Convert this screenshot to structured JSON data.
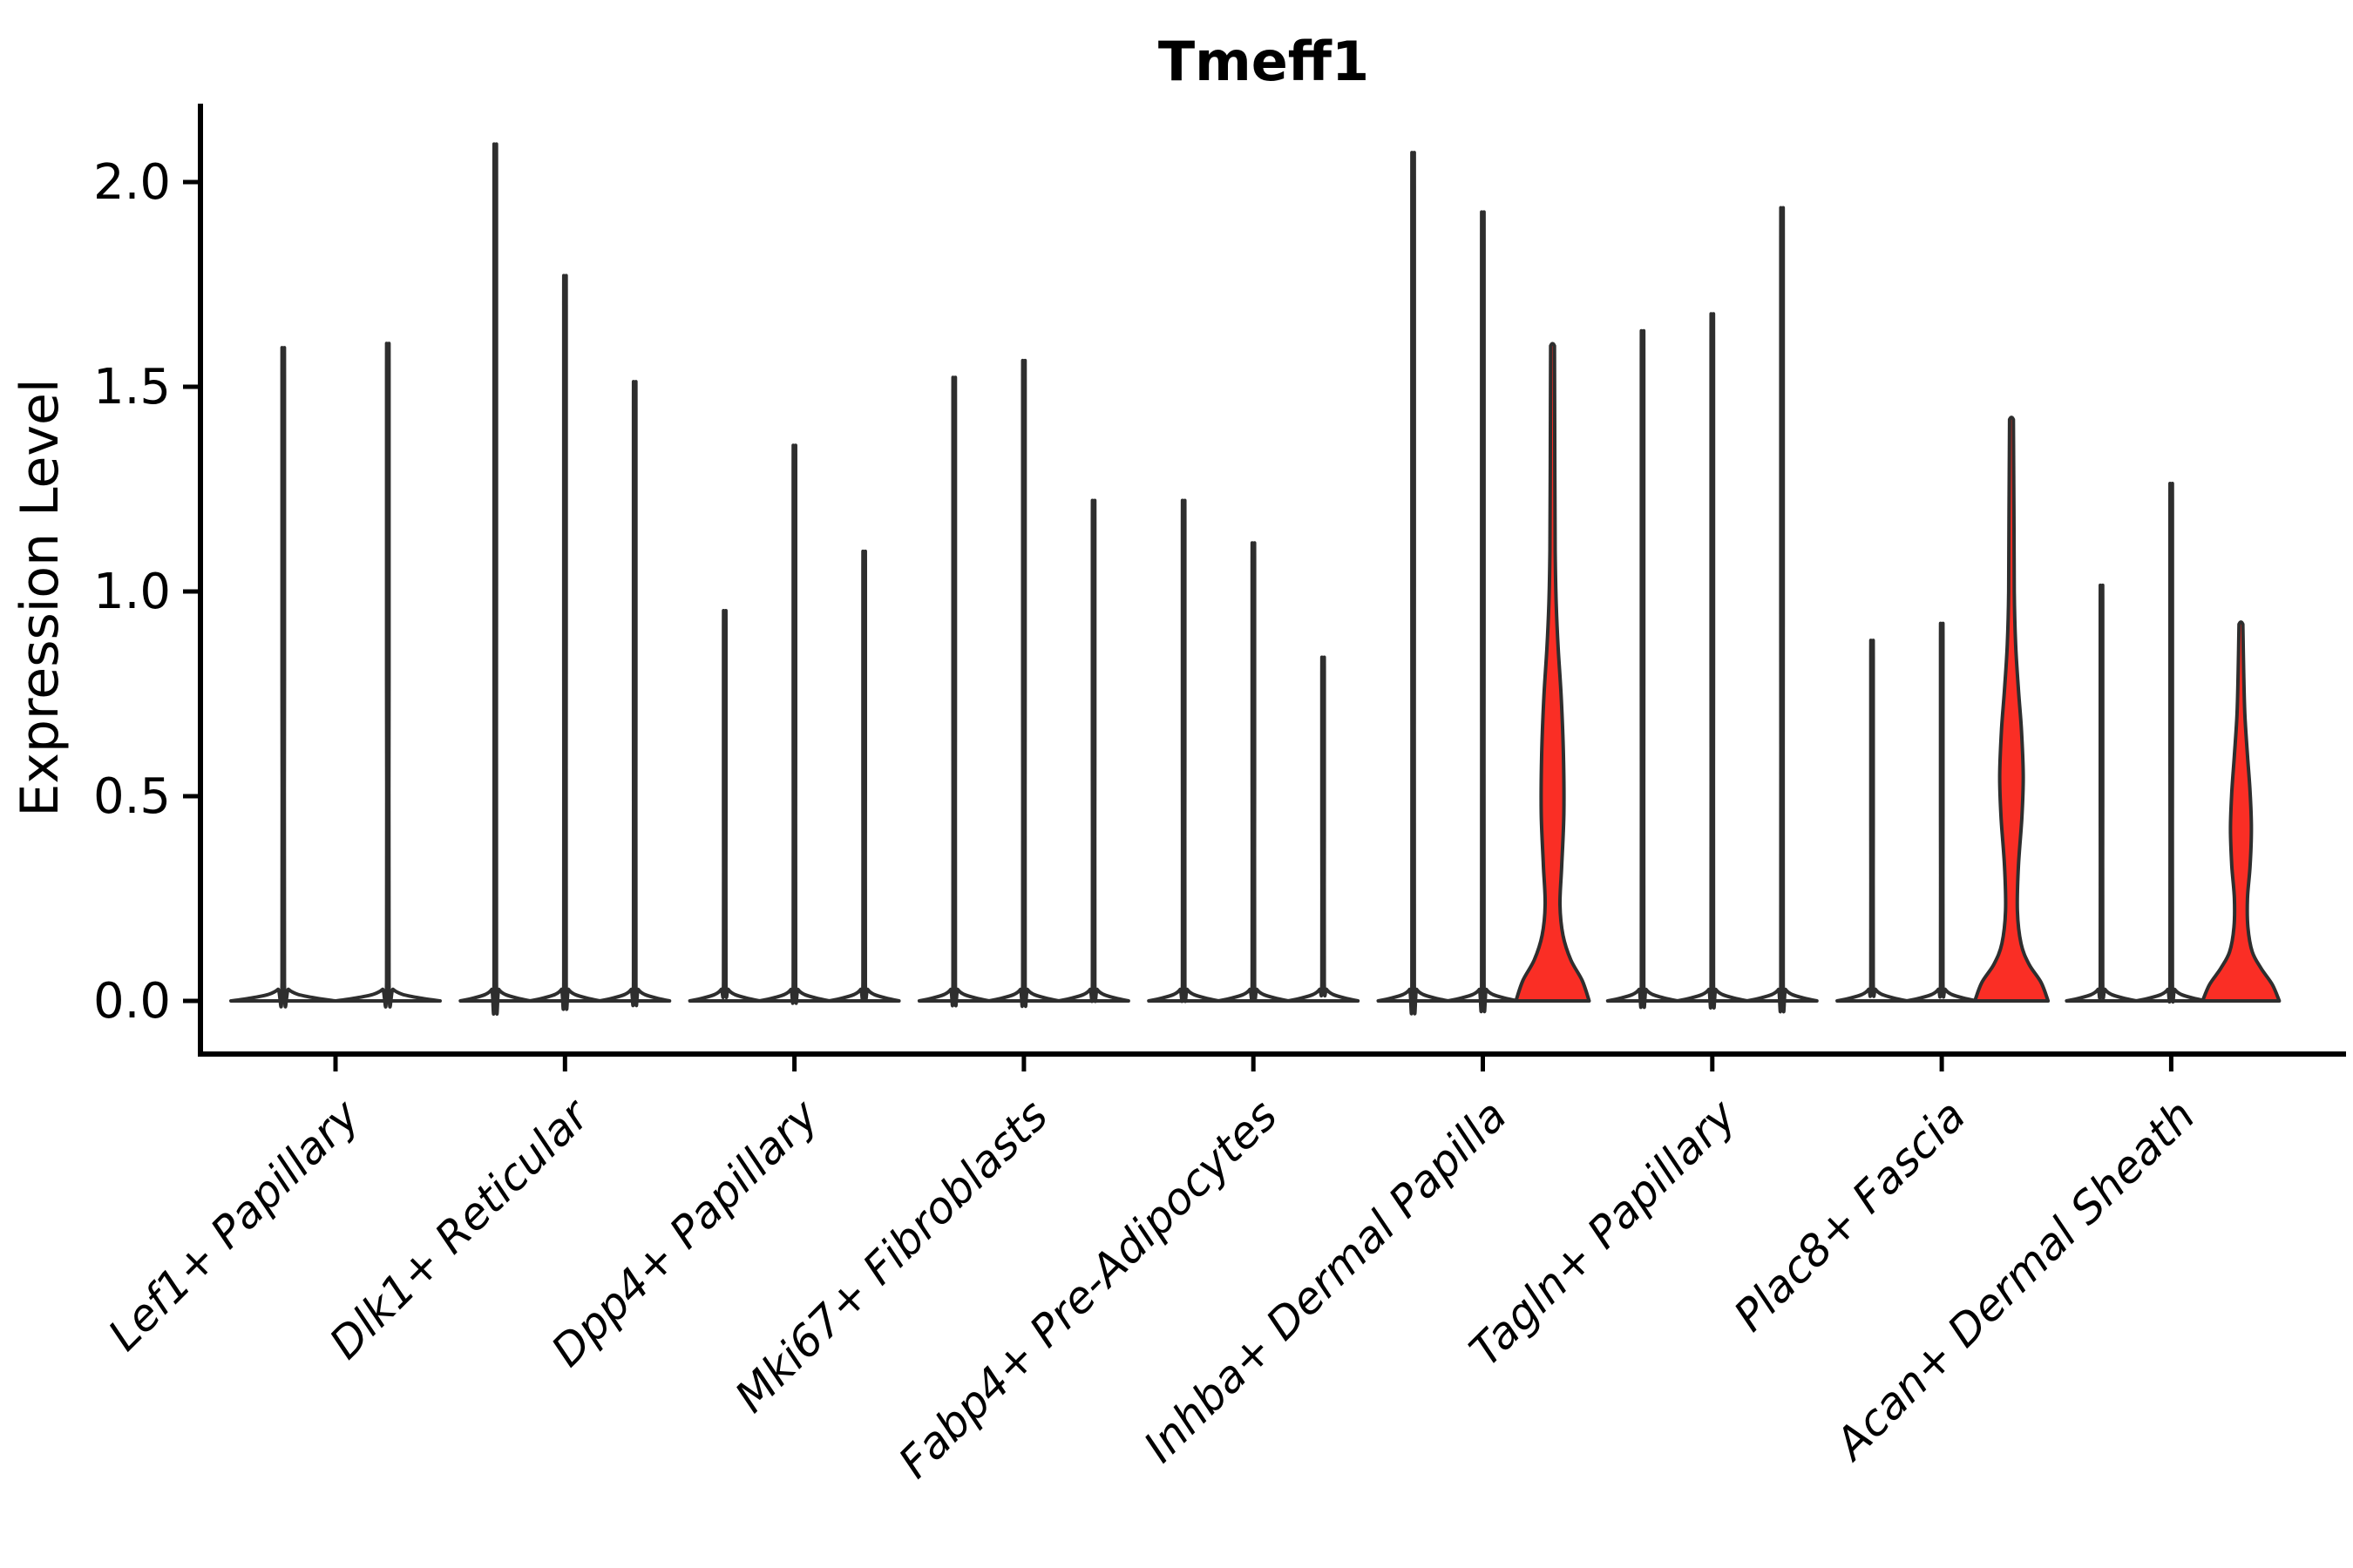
{
  "title": "Tmeff1",
  "y_axis": {
    "label": "Expression Level",
    "tick_labels": [
      "0.0",
      "0.5",
      "1.0",
      "1.5",
      "2.0"
    ],
    "tick_values": [
      0.0,
      0.5,
      1.0,
      1.5,
      2.0
    ]
  },
  "x_axis": {
    "label": "",
    "tick_labels": [
      "Lef1+ Papillary",
      "Dlk1+ Reticular",
      "Dpp4+ Papillary",
      "Mki67+ Fibroblasts",
      "Fabp4+ Pre-Adipocytes",
      "Inhba+ Dermal Papilla",
      "Tagln+ Papillary",
      "Plac8+ Fascia",
      "Acan+ Dermal Sheath"
    ]
  },
  "colors": {
    "outline": "#2e2e2e",
    "axis": "#000000",
    "red_fill": "#fa2e25",
    "background": "#ffffff"
  },
  "chart_data": {
    "type": "violin",
    "title": "Tmeff1",
    "xlabel": "",
    "ylabel": "Expression Level",
    "ylim": [
      0,
      2.2
    ],
    "y_ticks": [
      0.0,
      0.5,
      1.0,
      1.5,
      2.0
    ],
    "y_tick_labels": [
      "0.0",
      "0.5",
      "1.0",
      "1.5",
      "2.0"
    ],
    "legend": "none",
    "grid": false,
    "note": "Seurat-style stacked violin plot of Tmeff1 expression; each cluster shows one narrow spike-violin per sample; three violins are red-filled with visible density bulges.",
    "groups": [
      {
        "category": "Lef1+ Papillary",
        "violins": [
          {
            "max": 1.56,
            "shape": "spike",
            "fill": "white"
          },
          {
            "max": 1.57,
            "shape": "spike",
            "fill": "white"
          }
        ]
      },
      {
        "category": "Dlk1+ Reticular",
        "violins": [
          {
            "max": 2.04,
            "shape": "spike",
            "fill": "white"
          },
          {
            "max": 1.73,
            "shape": "spike",
            "fill": "white"
          },
          {
            "max": 1.48,
            "shape": "spike",
            "fill": "white"
          }
        ]
      },
      {
        "category": "Dpp4+ Papillary",
        "violins": [
          {
            "max": 0.94,
            "shape": "spike",
            "fill": "white"
          },
          {
            "max": 1.33,
            "shape": "spike",
            "fill": "white"
          },
          {
            "max": 1.08,
            "shape": "spike",
            "fill": "white"
          }
        ]
      },
      {
        "category": "Mki67+ Fibroblasts",
        "violins": [
          {
            "max": 1.49,
            "shape": "spike",
            "fill": "white"
          },
          {
            "max": 1.53,
            "shape": "spike",
            "fill": "white"
          },
          {
            "max": 1.2,
            "shape": "spike",
            "fill": "white"
          }
        ]
      },
      {
        "category": "Fabp4+ Pre-Adipocytes",
        "violins": [
          {
            "max": 1.2,
            "shape": "spike",
            "fill": "white"
          },
          {
            "max": 1.1,
            "shape": "spike",
            "fill": "white"
          },
          {
            "max": 0.83,
            "shape": "spike",
            "fill": "white"
          }
        ]
      },
      {
        "category": "Inhba+ Dermal Papilla",
        "violins": [
          {
            "max": 2.02,
            "shape": "spike",
            "fill": "white"
          },
          {
            "max": 1.88,
            "shape": "spike",
            "fill": "white"
          },
          {
            "max": 1.6,
            "shape": "bulged",
            "fill": "red",
            "profile": [
              [
                0,
                42
              ],
              [
                0.05,
                34
              ],
              [
                0.1,
                21
              ],
              [
                0.16,
                12
              ],
              [
                0.235,
                8.5
              ],
              [
                0.33,
                10.5
              ],
              [
                0.46,
                13
              ],
              [
                0.6,
                12.5
              ],
              [
                0.74,
                10
              ],
              [
                0.86,
                6.5
              ],
              [
                0.97,
                4.2
              ],
              [
                1.1,
                3.0
              ],
              [
                1.3,
                2.6
              ],
              [
                1.6,
                2.2
              ]
            ]
          }
        ]
      },
      {
        "category": "Tagln+ Papillary",
        "violins": [
          {
            "max": 1.6,
            "shape": "spike",
            "fill": "white"
          },
          {
            "max": 1.64,
            "shape": "spike",
            "fill": "white"
          },
          {
            "max": 1.89,
            "shape": "spike",
            "fill": "white"
          }
        ]
      },
      {
        "category": "Plac8+ Fascia",
        "violins": [
          {
            "max": 0.87,
            "shape": "spike",
            "fill": "white"
          },
          {
            "max": 0.91,
            "shape": "spike",
            "fill": "white"
          },
          {
            "max": 1.42,
            "shape": "bulged",
            "fill": "red",
            "profile": [
              [
                0,
                42
              ],
              [
                0.045,
                34
              ],
              [
                0.09,
                20
              ],
              [
                0.14,
                11
              ],
              [
                0.22,
                6.8
              ],
              [
                0.33,
                8
              ],
              [
                0.45,
                12
              ],
              [
                0.55,
                13.5
              ],
              [
                0.66,
                11.5
              ],
              [
                0.76,
                8
              ],
              [
                0.87,
                4.8
              ],
              [
                1.0,
                3.2
              ],
              [
                1.2,
                2.8
              ],
              [
                1.42,
                2.2
              ]
            ]
          }
        ]
      },
      {
        "category": "Acan+ Dermal Sheath",
        "violins": [
          {
            "max": 1.0,
            "shape": "spike",
            "fill": "white"
          },
          {
            "max": 1.24,
            "shape": "spike",
            "fill": "white"
          },
          {
            "max": 0.92,
            "shape": "bulged",
            "fill": "red",
            "profile": [
              [
                0,
                44
              ],
              [
                0.04,
                36
              ],
              [
                0.08,
                23
              ],
              [
                0.12,
                13
              ],
              [
                0.18,
                8
              ],
              [
                0.25,
                7.5
              ],
              [
                0.33,
                10.5
              ],
              [
                0.42,
                12
              ],
              [
                0.51,
                10.5
              ],
              [
                0.6,
                7.5
              ],
              [
                0.7,
                4.5
              ],
              [
                0.8,
                3.2
              ],
              [
                0.92,
                2.2
              ]
            ]
          }
        ]
      }
    ]
  }
}
